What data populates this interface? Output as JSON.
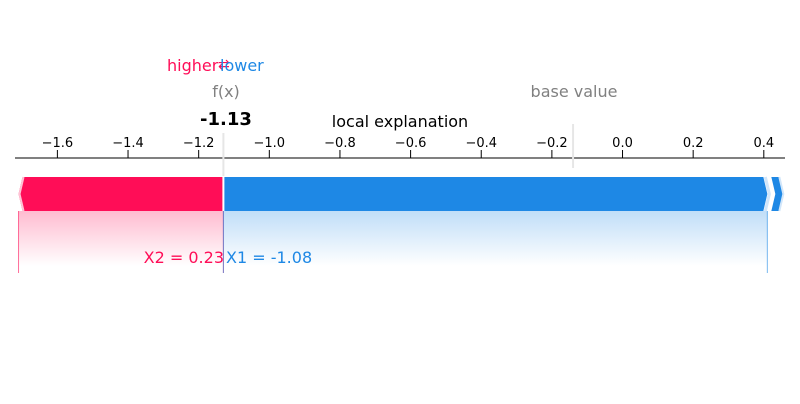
{
  "chart_data": {
    "type": "force_plot",
    "title": "local explanation",
    "xlim": [
      -1.72,
      0.46
    ],
    "ticks": [
      -1.6,
      -1.4,
      -1.2,
      -1.0,
      -0.8,
      -0.6,
      -0.4,
      -0.2,
      0.0,
      0.2,
      0.4
    ],
    "tick_labels": [
      "−1.6",
      "−1.4",
      "−1.2",
      "−1.0",
      "−0.8",
      "−0.6",
      "−0.4",
      "−0.2",
      "0.0",
      "0.2",
      "0.4"
    ],
    "output_value": -1.13,
    "output_label": "f(x)",
    "output_value_text": "-1.13",
    "base_value": -0.14,
    "base_value_label": "base value",
    "legend": {
      "higher_label": "higher",
      "lower_label": "lower",
      "arrow_glyph": "⇄"
    },
    "features": [
      {
        "name": "X2",
        "label": "X2 = 0.23",
        "direction": "higher",
        "start": -1.71,
        "end": -1.13
      },
      {
        "name": "X1",
        "label": "X1 = -1.08",
        "direction": "lower",
        "start": -1.13,
        "end": 0.41
      }
    ],
    "colors": {
      "higher": "#ff0d57",
      "lower": "#1e88e5",
      "base_label": "#808080",
      "text": "#000000"
    }
  }
}
